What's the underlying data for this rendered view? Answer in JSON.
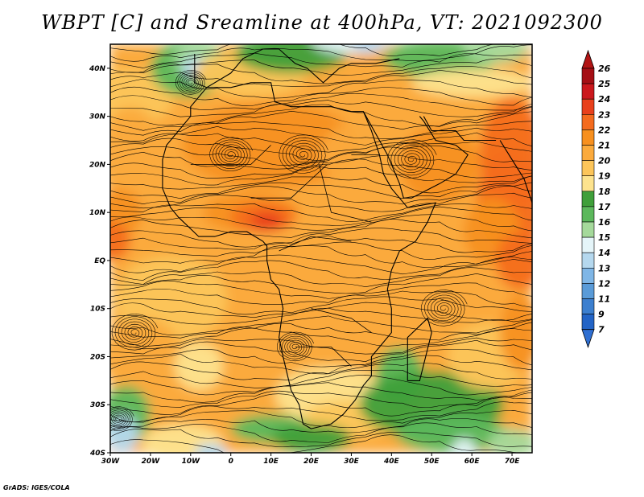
{
  "title": "WBPT [C] and Sreamline at 400hPa, VT: 2021092300",
  "footer": "GrADS: IGES/COLA",
  "map": {
    "lon_range": [
      -30,
      75
    ],
    "lat_range": [
      -40,
      45
    ],
    "lat_ticks": [
      {
        "value": 40,
        "label": "40N"
      },
      {
        "value": 30,
        "label": "30N"
      },
      {
        "value": 20,
        "label": "20N"
      },
      {
        "value": 10,
        "label": "10N"
      },
      {
        "value": 0,
        "label": "EQ"
      },
      {
        "value": -10,
        "label": "10S"
      },
      {
        "value": -20,
        "label": "20S"
      },
      {
        "value": -30,
        "label": "30S"
      },
      {
        "value": -40,
        "label": "40S"
      }
    ],
    "lon_ticks": [
      {
        "value": -30,
        "label": "30W"
      },
      {
        "value": -20,
        "label": "20W"
      },
      {
        "value": -10,
        "label": "10W"
      },
      {
        "value": 0,
        "label": "0"
      },
      {
        "value": 10,
        "label": "10E"
      },
      {
        "value": 20,
        "label": "20E"
      },
      {
        "value": 30,
        "label": "30E"
      },
      {
        "value": 40,
        "label": "40E"
      },
      {
        "value": 50,
        "label": "50E"
      },
      {
        "value": 60,
        "label": "60E"
      },
      {
        "value": 70,
        "label": "70E"
      }
    ]
  },
  "colorbar": {
    "labels": [
      "26",
      "25",
      "24",
      "23",
      "22",
      "21",
      "20",
      "19",
      "18",
      "17",
      "16",
      "15",
      "14",
      "13",
      "12",
      "11",
      "9",
      "7"
    ],
    "colors": [
      "#a50f15",
      "#cb181d",
      "#e8401c",
      "#f46b1e",
      "#f7901f",
      "#fbaa3c",
      "#fcc55a",
      "#fde38e",
      "#3f9f3a",
      "#5cb85c",
      "#a5d99b",
      "#e5f5f9",
      "#b5d8ee",
      "#7fb6e6",
      "#5a9bd8",
      "#3c7fcf",
      "#2364c6"
    ],
    "top_arrow_color": "#b21414",
    "bottom_arrow_color": "#2f6fd2"
  },
  "field_colors": {
    "c26": "#a50f15",
    "c24": "#e8401c",
    "c23": "#f46b1e",
    "c22": "#f7901f",
    "c21": "#fbaa3c",
    "c20": "#fcc55a",
    "c19": "#fde38e",
    "c18": "#3f9f3a",
    "c17": "#5cb85c",
    "c16": "#a5d99b",
    "c15": "#e5f5f9",
    "c14": "#b5d8ee",
    "c13": "#7fb6e6"
  }
}
